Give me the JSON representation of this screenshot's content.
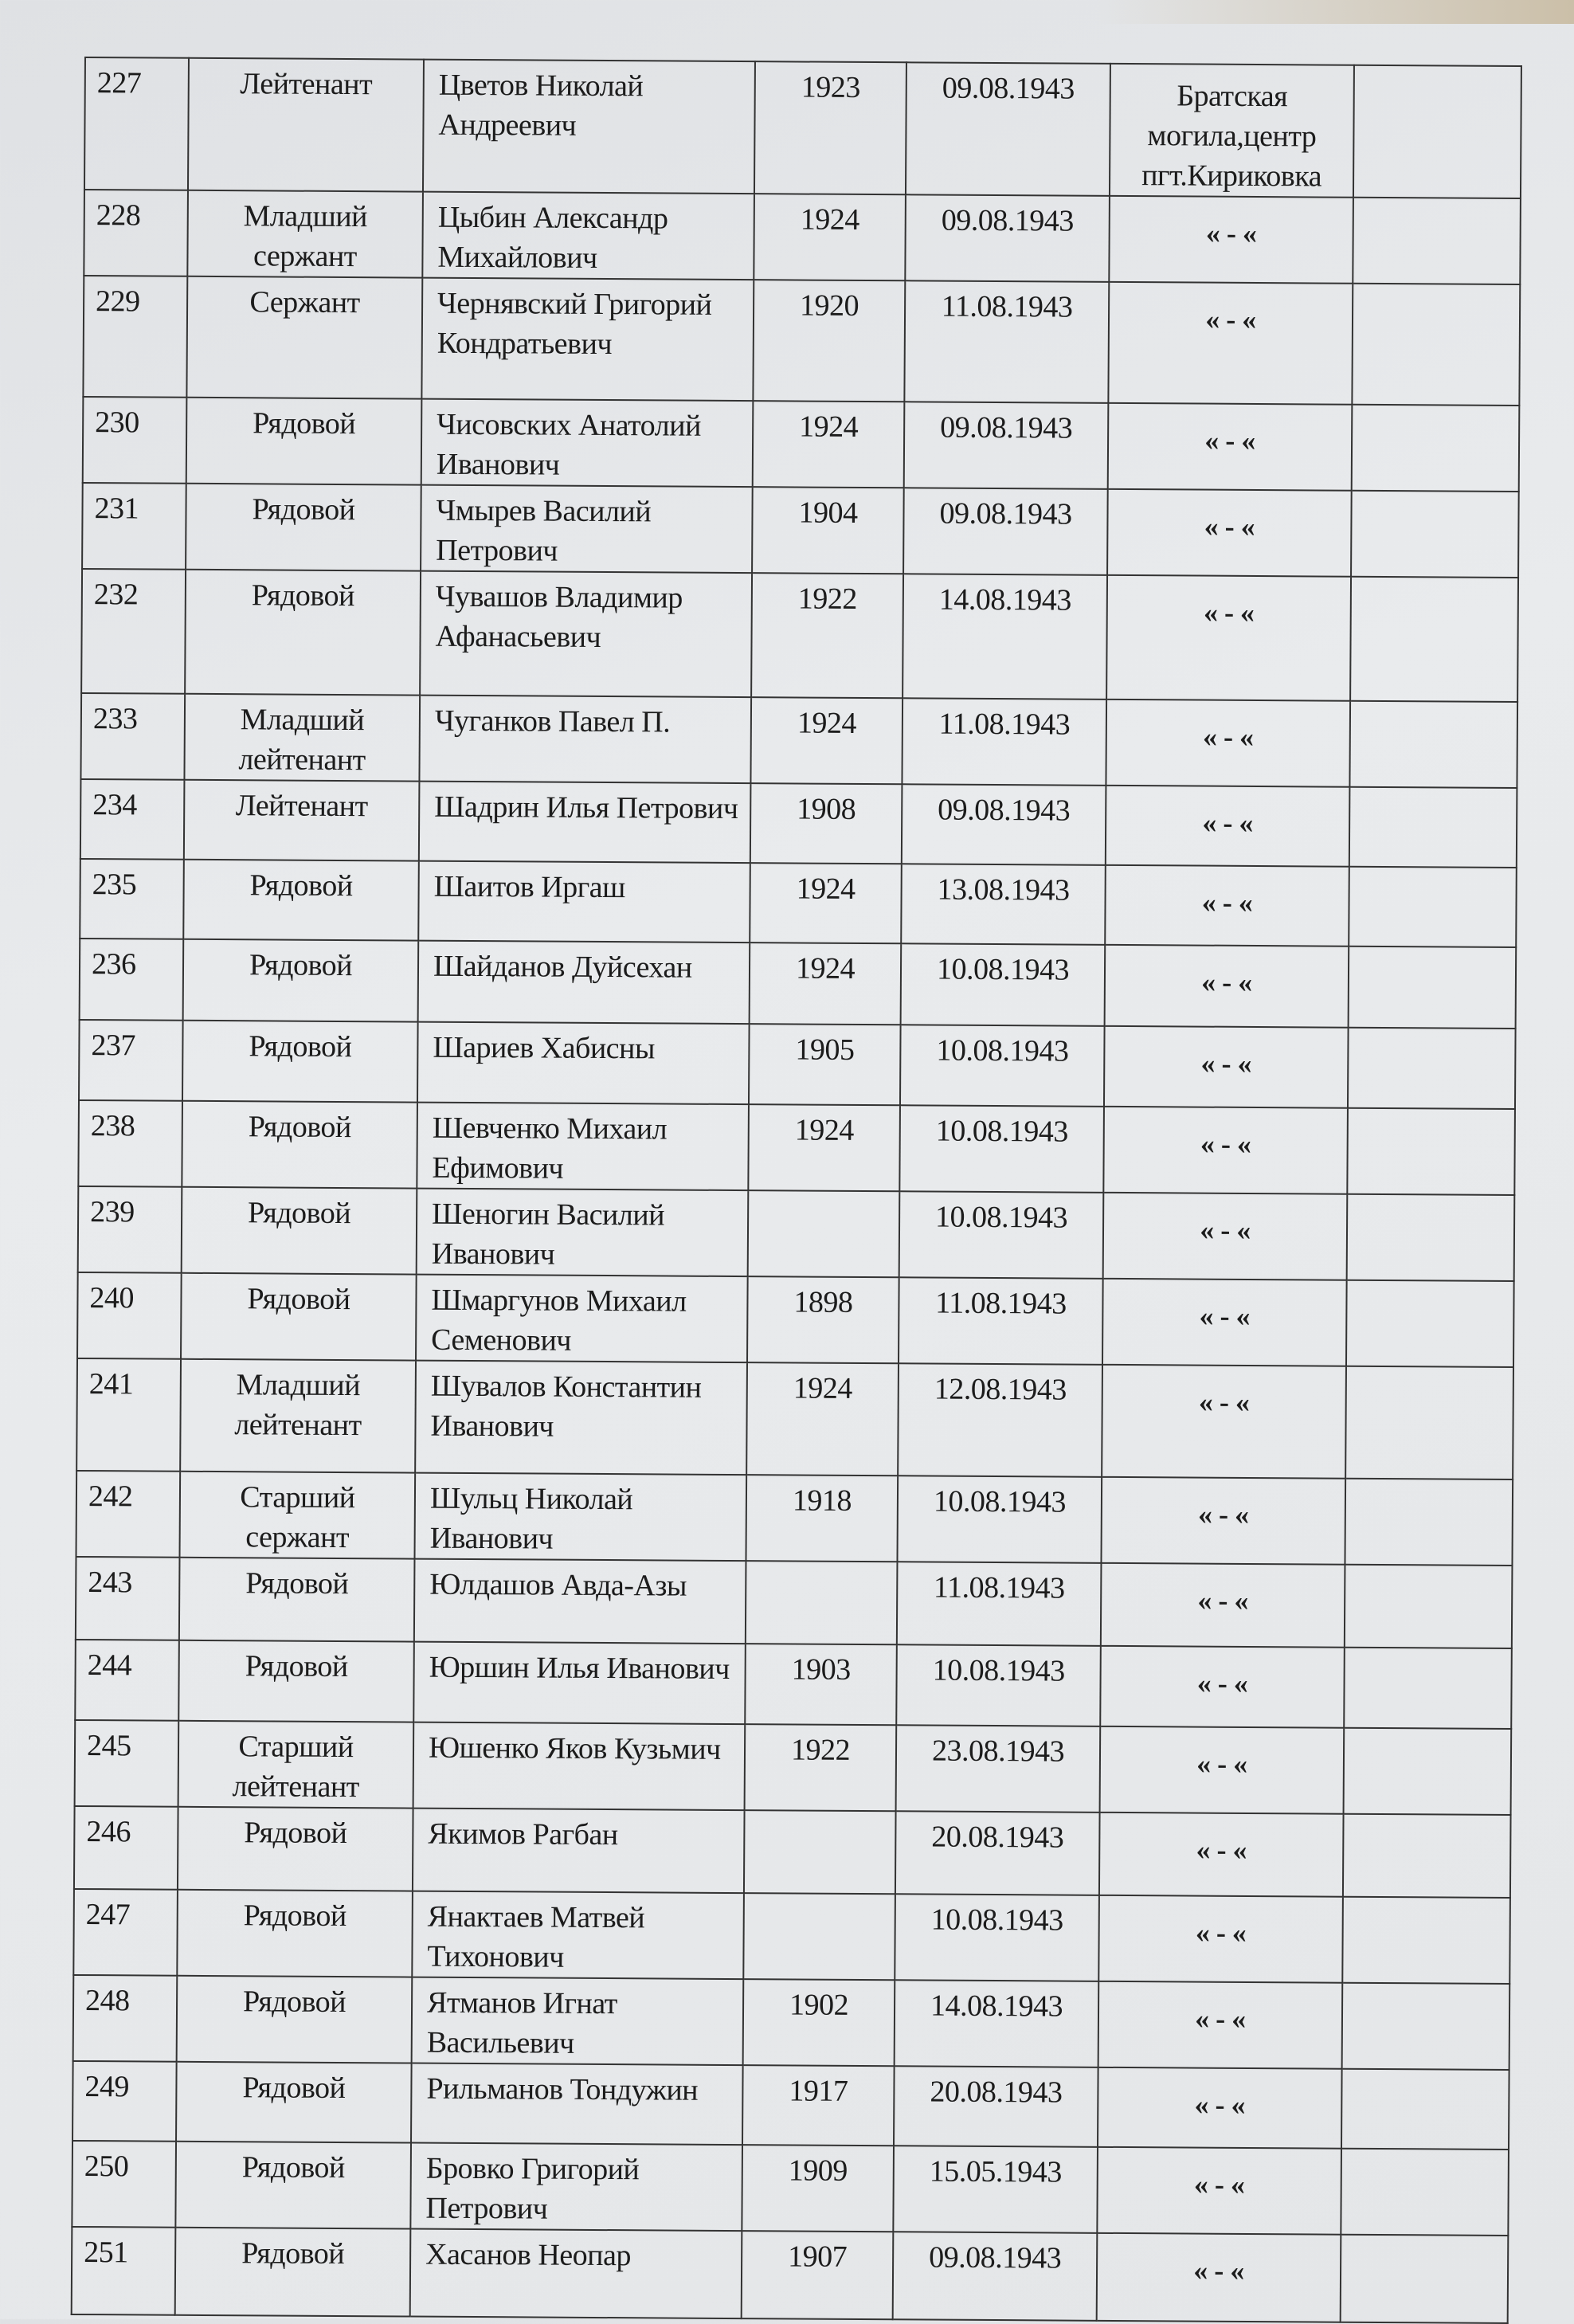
{
  "document": {
    "rows": [
      {
        "no": "227",
        "rank": "Лейтенант",
        "name": "Цветов Николай Андреевич",
        "year": "1923",
        "date": "09.08.1943",
        "burial": "Братская могила,центр пгт.Кириковка",
        "note": ""
      },
      {
        "no": "228",
        "rank": "Младший сержант",
        "name": "Цыбин Александр Михайлович",
        "year": "1924",
        "date": "09.08.1943",
        "burial": "« - «",
        "note": ""
      },
      {
        "no": "229",
        "rank": "Сержант",
        "name": "Чернявский Григорий Кондратьевич",
        "year": "1920",
        "date": "11.08.1943",
        "burial": "« - «",
        "note": ""
      },
      {
        "no": "230",
        "rank": "Рядовой",
        "name": "Чисовских Анатолий Иванович",
        "year": "1924",
        "date": "09.08.1943",
        "burial": "« - «",
        "note": ""
      },
      {
        "no": "231",
        "rank": "Рядовой",
        "name": "Чмырев Василий Петрович",
        "year": "1904",
        "date": "09.08.1943",
        "burial": "« - «",
        "note": ""
      },
      {
        "no": "232",
        "rank": "Рядовой",
        "name": "Чувашов Владимир Афанасьевич",
        "year": "1922",
        "date": "14.08.1943",
        "burial": "« - «",
        "note": ""
      },
      {
        "no": "233",
        "rank": "Младший лейтенант",
        "name": "Чуганков Павел П.",
        "year": "1924",
        "date": "11.08.1943",
        "burial": "« - «",
        "note": ""
      },
      {
        "no": "234",
        "rank": "Лейтенант",
        "name": "Шадрин Илья Петрович",
        "year": "1908",
        "date": "09.08.1943",
        "burial": "« - «",
        "note": ""
      },
      {
        "no": "235",
        "rank": "Рядовой",
        "name": "Шаитов Иргаш",
        "year": "1924",
        "date": "13.08.1943",
        "burial": "« - «",
        "note": ""
      },
      {
        "no": "236",
        "rank": "Рядовой",
        "name": "Шайданов Дуйсехан",
        "year": "1924",
        "date": "10.08.1943",
        "burial": "« - «",
        "note": ""
      },
      {
        "no": "237",
        "rank": "Рядовой",
        "name": "Шариев Хабисны",
        "year": "1905",
        "date": "10.08.1943",
        "burial": "« - «",
        "note": ""
      },
      {
        "no": "238",
        "rank": "Рядовой",
        "name": "Шевченко Михаил Ефимович",
        "year": "1924",
        "date": "10.08.1943",
        "burial": "« - «",
        "note": ""
      },
      {
        "no": "239",
        "rank": "Рядовой",
        "name": "Шеногин Василий Иванович",
        "year": "",
        "date": "10.08.1943",
        "burial": "« - «",
        "note": ""
      },
      {
        "no": "240",
        "rank": "Рядовой",
        "name": "Шмаргунов Михаил Семенович",
        "year": "1898",
        "date": "11.08.1943",
        "burial": "« - «",
        "note": ""
      },
      {
        "no": "241",
        "rank": "Младший лейтенант",
        "name": "Шувалов Константин Иванович",
        "year": "1924",
        "date": "12.08.1943",
        "burial": "« - «",
        "note": ""
      },
      {
        "no": "242",
        "rank": "Старший сержант",
        "name": "Шульц Николай Иванович",
        "year": "1918",
        "date": "10.08.1943",
        "burial": "« - «",
        "note": ""
      },
      {
        "no": "243",
        "rank": "Рядовой",
        "name": "Юлдашов Авда-Азы",
        "year": "",
        "date": "11.08.1943",
        "burial": "« - «",
        "note": ""
      },
      {
        "no": "244",
        "rank": "Рядовой",
        "name": "Юршин Илья Иванович",
        "year": "1903",
        "date": "10.08.1943",
        "burial": "« - «",
        "note": ""
      },
      {
        "no": "245",
        "rank": "Старший лейтенант",
        "name": "Юшенко Яков Кузьмич",
        "year": "1922",
        "date": "23.08.1943",
        "burial": "« - «",
        "note": ""
      },
      {
        "no": "246",
        "rank": "Рядовой",
        "name": "Якимов Рагбан",
        "year": "",
        "date": "20.08.1943",
        "burial": "« - «",
        "note": ""
      },
      {
        "no": "247",
        "rank": "Рядовой",
        "name": "Янактаев Матвей Тихонович",
        "year": "",
        "date": "10.08.1943",
        "burial": "« - «",
        "note": ""
      },
      {
        "no": "248",
        "rank": "Рядовой",
        "name": "Ятманов Игнат Васильевич",
        "year": "1902",
        "date": "14.08.1943",
        "burial": "« - «",
        "note": ""
      },
      {
        "no": "249",
        "rank": "Рядовой",
        "name": "Рильманов Тондужин",
        "year": "1917",
        "date": "20.08.1943",
        "burial": "« - «",
        "note": ""
      },
      {
        "no": "250",
        "rank": "Рядовой",
        "name": "Бровко Григорий Петрович",
        "year": "1909",
        "date": "15.05.1943",
        "burial": "« - «",
        "note": ""
      },
      {
        "no": "251",
        "rank": "Рядовой",
        "name": "Хасанов Неопар",
        "year": "1907",
        "date": "09.08.1943",
        "burial": "« - «",
        "note": ""
      }
    ]
  }
}
